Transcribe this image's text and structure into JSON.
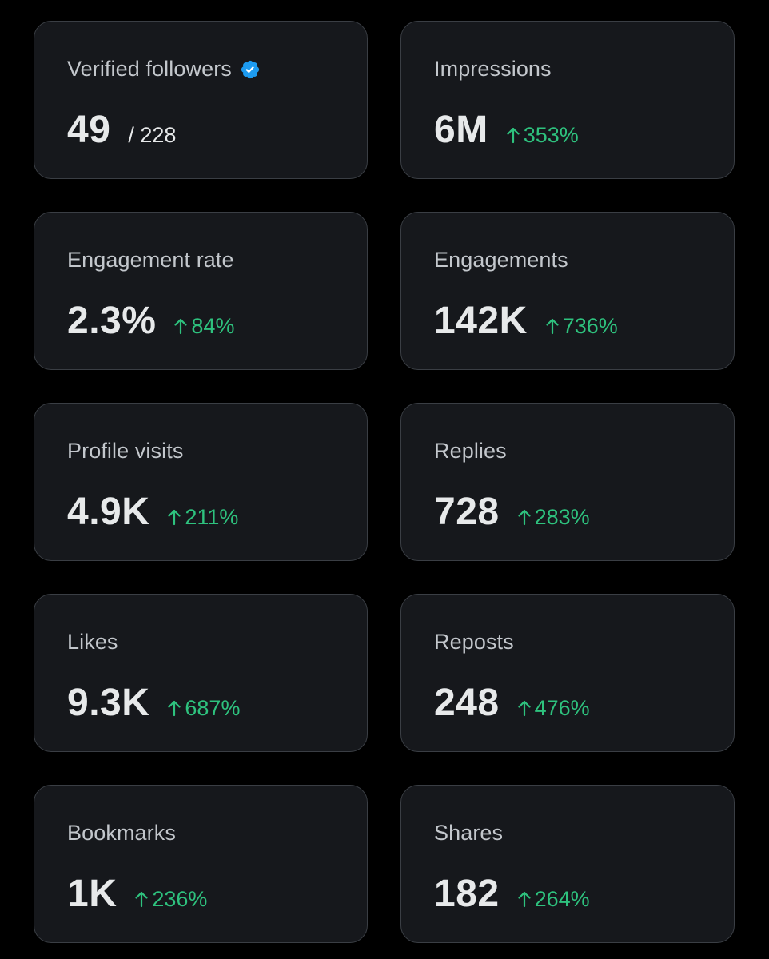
{
  "colors": {
    "background": "#000000",
    "card": "#16181c",
    "border": "#3a3e44",
    "label": "#c3c7cc",
    "value": "#e7e9ea",
    "positive": "#2ec27e",
    "verified_badge": "#1d9bf0"
  },
  "metrics": [
    {
      "label": "Verified followers",
      "icon": "verified-badge-icon",
      "value": "49",
      "sub": "/ 228"
    },
    {
      "label": "Impressions",
      "value": "6M",
      "change_icon": "arrow-up-icon",
      "change": "353%"
    },
    {
      "label": "Engagement rate",
      "value": "2.3%",
      "change_icon": "arrow-up-icon",
      "change": "84%"
    },
    {
      "label": "Engagements",
      "value": "142K",
      "change_icon": "arrow-up-icon",
      "change": "736%"
    },
    {
      "label": "Profile visits",
      "value": "4.9K",
      "change_icon": "arrow-up-icon",
      "change": "211%"
    },
    {
      "label": "Replies",
      "value": "728",
      "change_icon": "arrow-up-icon",
      "change": "283%"
    },
    {
      "label": "Likes",
      "value": "9.3K",
      "change_icon": "arrow-up-icon",
      "change": "687%"
    },
    {
      "label": "Reposts",
      "value": "248",
      "change_icon": "arrow-up-icon",
      "change": "476%"
    },
    {
      "label": "Bookmarks",
      "value": "1K",
      "change_icon": "arrow-up-icon",
      "change": "236%"
    },
    {
      "label": "Shares",
      "value": "182",
      "change_icon": "arrow-up-icon",
      "change": "264%"
    }
  ]
}
